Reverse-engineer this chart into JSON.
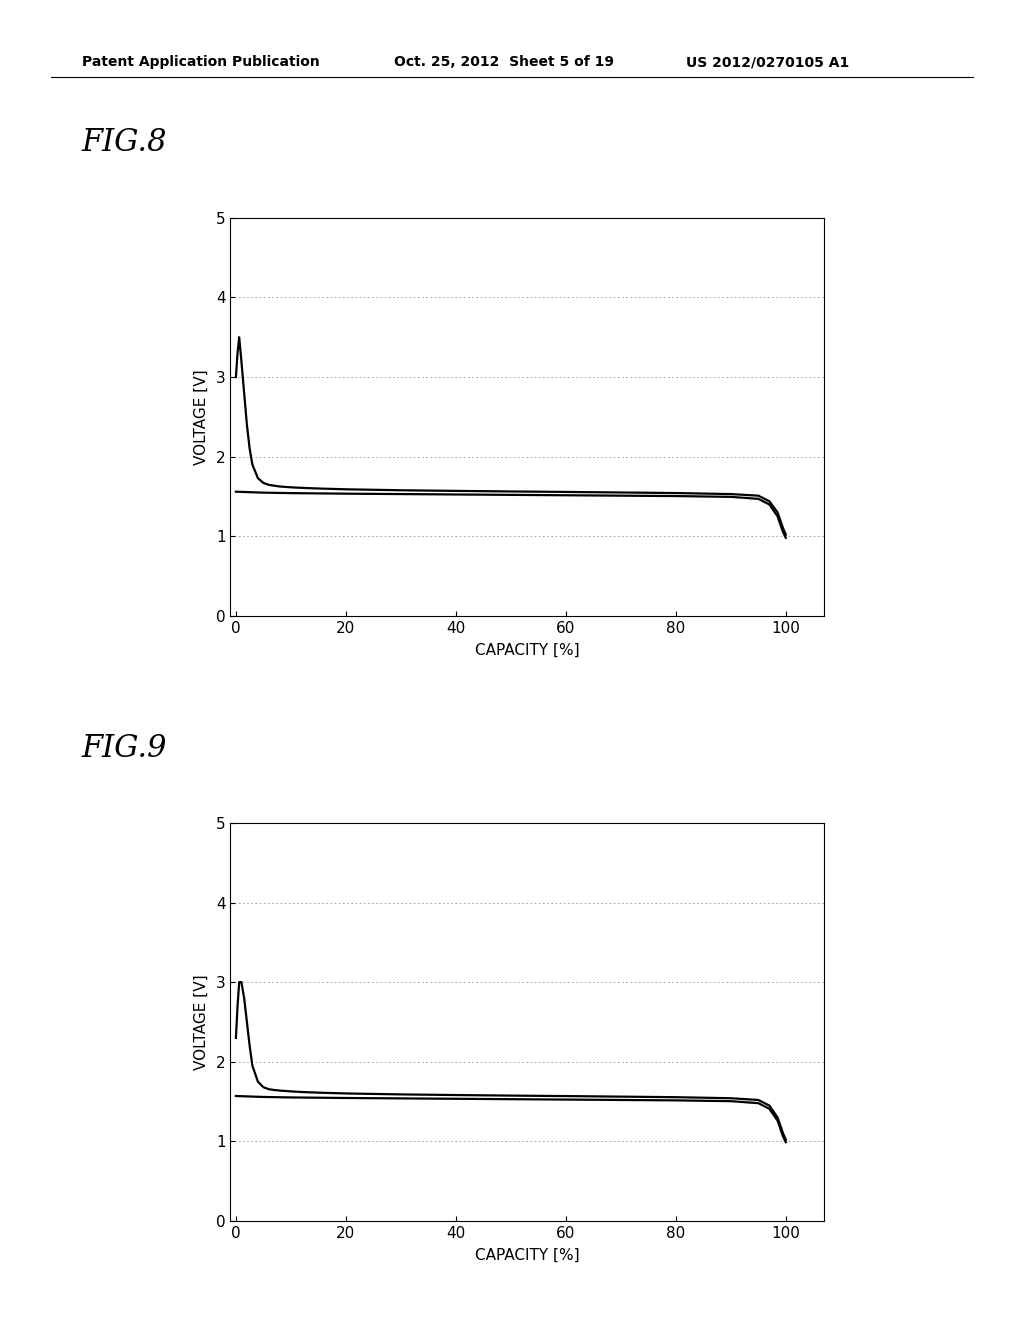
{
  "fig8_title": "FIG.8",
  "fig9_title": "FIG.9",
  "xlabel": "CAPACITY [%]",
  "ylabel": "VOLTAGE [V]",
  "xlim": [
    -1,
    107
  ],
  "ylim": [
    0,
    5
  ],
  "xticks": [
    0,
    20,
    40,
    60,
    80,
    100
  ],
  "yticks": [
    0,
    1,
    2,
    3,
    4,
    5
  ],
  "grid_color": "#999999",
  "line_color": "#000000",
  "background_color": "#ffffff",
  "header_text": "Patent Application Publication",
  "header_date": "Oct. 25, 2012  Sheet 5 of 19",
  "header_patent": "US 2012/0270105 A1",
  "title_fontsize": 22,
  "axis_label_fontsize": 11,
  "tick_fontsize": 11,
  "header_fontsize": 10,
  "fig8_discharge_x": [
    0,
    0.3,
    0.6,
    1.0,
    1.5,
    2.0,
    2.5,
    3.0,
    4.0,
    5.0,
    6.0,
    7.0,
    8.0,
    10.0,
    12.0,
    15.0,
    20.0,
    30.0,
    40.0,
    50.0,
    60.0,
    70.0,
    80.0,
    90.0,
    95.0,
    97.0,
    98.5,
    99.5,
    100.0
  ],
  "fig8_discharge_y": [
    3.0,
    3.3,
    3.5,
    3.2,
    2.8,
    2.4,
    2.1,
    1.9,
    1.73,
    1.67,
    1.645,
    1.635,
    1.625,
    1.615,
    1.608,
    1.6,
    1.59,
    1.578,
    1.57,
    1.563,
    1.557,
    1.55,
    1.543,
    1.53,
    1.51,
    1.44,
    1.3,
    1.1,
    1.02
  ],
  "fig8_charge_x": [
    0,
    2.0,
    5.0,
    10.0,
    20.0,
    30.0,
    40.0,
    50.0,
    60.0,
    70.0,
    80.0,
    90.0,
    95.0,
    97.0,
    98.5,
    99.5,
    100.0
  ],
  "fig8_charge_y": [
    1.56,
    1.555,
    1.548,
    1.542,
    1.535,
    1.53,
    1.525,
    1.52,
    1.515,
    1.51,
    1.505,
    1.495,
    1.47,
    1.4,
    1.25,
    1.05,
    0.98
  ],
  "fig9_discharge_x": [
    0,
    0.3,
    0.6,
    1.0,
    1.5,
    2.0,
    2.5,
    3.0,
    4.0,
    5.0,
    6.0,
    7.0,
    8.0,
    10.0,
    12.0,
    15.0,
    20.0,
    30.0,
    40.0,
    50.0,
    60.0,
    70.0,
    80.0,
    90.0,
    95.0,
    97.0,
    98.5,
    99.5,
    100.0
  ],
  "fig9_discharge_y": [
    2.3,
    2.7,
    3.0,
    3.0,
    2.8,
    2.5,
    2.2,
    1.95,
    1.75,
    1.68,
    1.655,
    1.645,
    1.638,
    1.628,
    1.62,
    1.612,
    1.602,
    1.59,
    1.582,
    1.575,
    1.569,
    1.562,
    1.555,
    1.542,
    1.52,
    1.45,
    1.3,
    1.1,
    1.02
  ],
  "fig9_charge_x": [
    0,
    2.0,
    5.0,
    10.0,
    20.0,
    30.0,
    40.0,
    50.0,
    60.0,
    70.0,
    80.0,
    90.0,
    95.0,
    97.0,
    98.5,
    99.5,
    100.0
  ],
  "fig9_charge_y": [
    1.57,
    1.565,
    1.558,
    1.552,
    1.545,
    1.54,
    1.535,
    1.53,
    1.525,
    1.52,
    1.515,
    1.505,
    1.48,
    1.41,
    1.26,
    1.06,
    0.99
  ]
}
